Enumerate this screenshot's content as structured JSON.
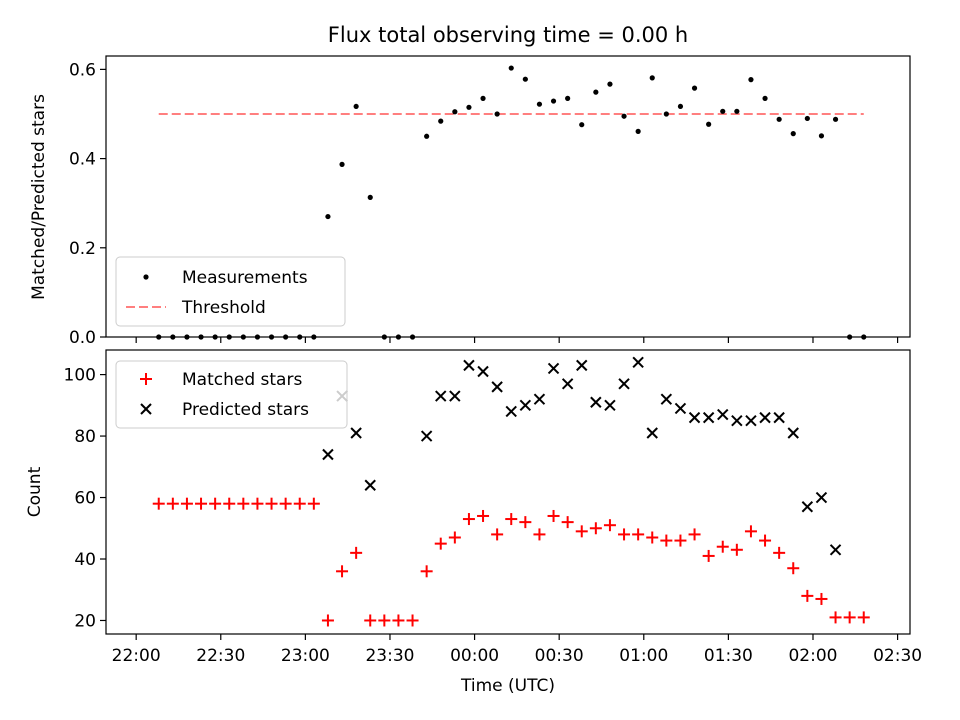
{
  "title": "Flux total observing time = 0.00 h",
  "colors": {
    "measurement": "#000000",
    "threshold": "#ff7f7f",
    "matched": "#ff0000",
    "predicted": "#000000"
  },
  "chart_data": [
    {
      "type": "scatter",
      "title": "Flux total observing time = 0.00 h",
      "xlabel": "",
      "ylabel": "Matched/Predicted stars",
      "ylim": [
        0,
        0.63
      ],
      "yticks": [
        "0.0",
        "0.2",
        "0.4",
        "0.6"
      ],
      "x_range": [
        "22:00",
        "02:30"
      ],
      "legend": {
        "placement": "lower-left",
        "entries": [
          "Measurements",
          "Threshold"
        ]
      },
      "series": [
        {
          "name": "Measurements",
          "marker": "dot",
          "x": [
            "22:08",
            "22:13",
            "22:18",
            "22:23",
            "22:28",
            "22:33",
            "22:38",
            "22:43",
            "22:48",
            "22:53",
            "22:58",
            "23:03",
            "23:08",
            "23:13",
            "23:18",
            "23:23",
            "23:28",
            "23:33",
            "23:38",
            "23:43",
            "23:48",
            "23:53",
            "23:58",
            "00:03",
            "00:08",
            "00:13",
            "00:18",
            "00:23",
            "00:28",
            "00:33",
            "00:38",
            "00:43",
            "00:48",
            "00:53",
            "00:58",
            "01:03",
            "01:08",
            "01:13",
            "01:18",
            "01:23",
            "01:28",
            "01:33",
            "01:38",
            "01:43",
            "01:48",
            "01:53",
            "01:58",
            "02:03",
            "02:08",
            "02:13",
            "02:18"
          ],
          "y": [
            0,
            0,
            0,
            0,
            0,
            0,
            0,
            0,
            0,
            0,
            0,
            0,
            0.27,
            0.387,
            0.517,
            0.313,
            0,
            0,
            0,
            0.45,
            0.484,
            0.505,
            0.515,
            0.535,
            0.5,
            0.603,
            0.578,
            0.522,
            0.529,
            0.535,
            0.476,
            0.549,
            0.567,
            0.495,
            0.461,
            0.581,
            0.5,
            0.517,
            0.558,
            0.477,
            0.506,
            0.506,
            0.577,
            0.535,
            0.488,
            0.456,
            0.49,
            0.451,
            0.488,
            0,
            0
          ]
        },
        {
          "name": "Threshold",
          "marker": "dashed-line",
          "x": [
            "22:08",
            "02:18"
          ],
          "y": [
            0.5,
            0.5
          ]
        }
      ]
    },
    {
      "type": "scatter",
      "title": "",
      "xlabel": "Time (UTC)",
      "ylabel": "Count",
      "ylim": [
        15.6,
        108
      ],
      "yticks": [
        "20",
        "40",
        "60",
        "80",
        "100"
      ],
      "xticks": [
        "22:00",
        "22:30",
        "23:00",
        "23:30",
        "00:00",
        "00:30",
        "01:00",
        "01:30",
        "02:00",
        "02:30"
      ],
      "legend": {
        "placement": "top-left",
        "entries": [
          "Matched stars",
          "Predicted stars"
        ]
      },
      "series": [
        {
          "name": "Matched stars",
          "marker": "plus",
          "x": [
            "22:08",
            "22:13",
            "22:18",
            "22:23",
            "22:28",
            "22:33",
            "22:38",
            "22:43",
            "22:48",
            "22:53",
            "22:58",
            "23:03",
            "23:08",
            "23:13",
            "23:18",
            "23:23",
            "23:28",
            "23:33",
            "23:38",
            "23:43",
            "23:48",
            "23:53",
            "23:58",
            "00:03",
            "00:08",
            "00:13",
            "00:18",
            "00:23",
            "00:28",
            "00:33",
            "00:38",
            "00:43",
            "00:48",
            "00:53",
            "00:58",
            "01:03",
            "01:08",
            "01:13",
            "01:18",
            "01:23",
            "01:28",
            "01:33",
            "01:38",
            "01:43",
            "01:48",
            "01:53",
            "01:58",
            "02:03",
            "02:08",
            "02:13",
            "02:18"
          ],
          "y": [
            58,
            58,
            58,
            58,
            58,
            58,
            58,
            58,
            58,
            58,
            58,
            58,
            20,
            36,
            42,
            20,
            20,
            20,
            20,
            36,
            45,
            47,
            53,
            54,
            48,
            53,
            52,
            48,
            54,
            52,
            49,
            50,
            51,
            48,
            48,
            47,
            46,
            46,
            48,
            41,
            44,
            43,
            49,
            46,
            42,
            37,
            28,
            27,
            21,
            21,
            21
          ]
        },
        {
          "name": "Predicted stars",
          "marker": "x",
          "x": [
            "23:08",
            "23:13",
            "23:18",
            "23:23",
            "23:43",
            "23:48",
            "23:53",
            "23:58",
            "00:03",
            "00:08",
            "00:13",
            "00:18",
            "00:23",
            "00:28",
            "00:33",
            "00:38",
            "00:43",
            "00:48",
            "00:53",
            "00:58",
            "01:03",
            "01:08",
            "01:13",
            "01:18",
            "01:23",
            "01:28",
            "01:33",
            "01:38",
            "01:43",
            "01:48",
            "01:53",
            "01:58",
            "02:03",
            "02:08"
          ],
          "y": [
            74,
            93,
            81,
            64,
            80,
            93,
            93,
            103,
            101,
            96,
            88,
            90,
            92,
            102,
            97,
            103,
            91,
            90,
            97,
            104,
            81,
            92,
            89,
            86,
            86,
            87,
            85,
            85,
            86,
            86,
            81,
            57,
            60,
            43
          ]
        }
      ]
    }
  ]
}
